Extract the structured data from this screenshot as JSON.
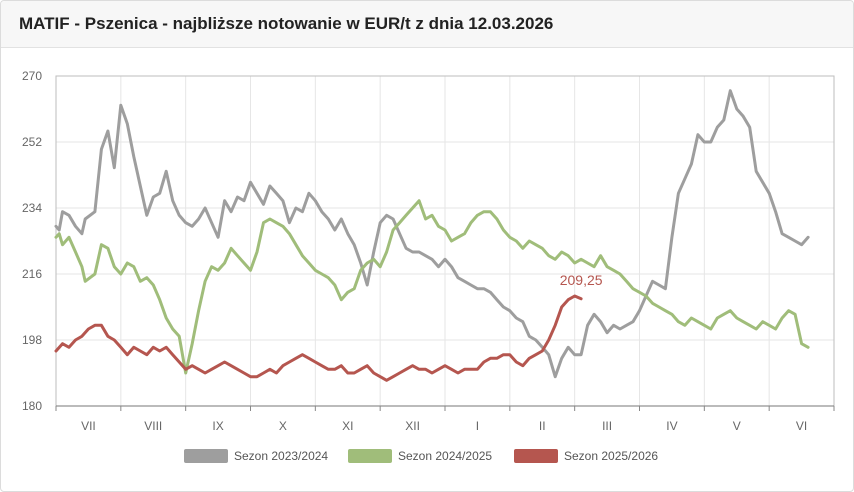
{
  "header": {
    "title": "MATIF - Pszenica - najbliższe notowanie w EUR/t z dnia 12.03.2026"
  },
  "chart_data": {
    "type": "line",
    "ylim": [
      180,
      270
    ],
    "yticks": [
      180,
      198,
      216,
      234,
      252,
      270
    ],
    "months": [
      "VII",
      "VIII",
      "IX",
      "X",
      "XI",
      "XII",
      "I",
      "II",
      "III",
      "IV",
      "V",
      "VI"
    ],
    "grid": true,
    "legend_position": "bottom",
    "last_value_label": "209,25",
    "series": [
      {
        "name": "Sezon 2023/2024",
        "color": "#9e9e9e",
        "points": [
          [
            0,
            229
          ],
          [
            0.05,
            228
          ],
          [
            0.1,
            233
          ],
          [
            0.2,
            232
          ],
          [
            0.3,
            229
          ],
          [
            0.4,
            227
          ],
          [
            0.45,
            231
          ],
          [
            0.6,
            233
          ],
          [
            0.7,
            250
          ],
          [
            0.8,
            255
          ],
          [
            0.9,
            245
          ],
          [
            1.0,
            262
          ],
          [
            1.1,
            257
          ],
          [
            1.2,
            248
          ],
          [
            1.3,
            240
          ],
          [
            1.4,
            232
          ],
          [
            1.5,
            237
          ],
          [
            1.6,
            238
          ],
          [
            1.7,
            244
          ],
          [
            1.8,
            236
          ],
          [
            1.9,
            232
          ],
          [
            2.0,
            230
          ],
          [
            2.1,
            229
          ],
          [
            2.2,
            231
          ],
          [
            2.3,
            234
          ],
          [
            2.4,
            230
          ],
          [
            2.5,
            226
          ],
          [
            2.6,
            236
          ],
          [
            2.7,
            233
          ],
          [
            2.8,
            237
          ],
          [
            2.9,
            236
          ],
          [
            3.0,
            241
          ],
          [
            3.1,
            238
          ],
          [
            3.2,
            235
          ],
          [
            3.3,
            240
          ],
          [
            3.4,
            238
          ],
          [
            3.5,
            236
          ],
          [
            3.6,
            230
          ],
          [
            3.7,
            234
          ],
          [
            3.8,
            233
          ],
          [
            3.9,
            238
          ],
          [
            4.0,
            236
          ],
          [
            4.1,
            233
          ],
          [
            4.2,
            231
          ],
          [
            4.3,
            228
          ],
          [
            4.4,
            231
          ],
          [
            4.5,
            227
          ],
          [
            4.6,
            224
          ],
          [
            4.7,
            219
          ],
          [
            4.8,
            213
          ],
          [
            4.9,
            222
          ],
          [
            5.0,
            230
          ],
          [
            5.1,
            232
          ],
          [
            5.2,
            231
          ],
          [
            5.3,
            227
          ],
          [
            5.4,
            223
          ],
          [
            5.5,
            222
          ],
          [
            5.6,
            222
          ],
          [
            5.7,
            221
          ],
          [
            5.8,
            220
          ],
          [
            5.9,
            218
          ],
          [
            6.0,
            220
          ],
          [
            6.1,
            218
          ],
          [
            6.2,
            215
          ],
          [
            6.3,
            214
          ],
          [
            6.4,
            213
          ],
          [
            6.5,
            212
          ],
          [
            6.6,
            212
          ],
          [
            6.7,
            211
          ],
          [
            6.8,
            209
          ],
          [
            6.9,
            207
          ],
          [
            7.0,
            206
          ],
          [
            7.1,
            204
          ],
          [
            7.2,
            203
          ],
          [
            7.3,
            199
          ],
          [
            7.4,
            198
          ],
          [
            7.5,
            196
          ],
          [
            7.6,
            194
          ],
          [
            7.7,
            188
          ],
          [
            7.8,
            193
          ],
          [
            7.9,
            196
          ],
          [
            8.0,
            194
          ],
          [
            8.1,
            194
          ],
          [
            8.2,
            202
          ],
          [
            8.3,
            205
          ],
          [
            8.4,
            203
          ],
          [
            8.5,
            200
          ],
          [
            8.6,
            202
          ],
          [
            8.7,
            201
          ],
          [
            8.8,
            202
          ],
          [
            8.9,
            203
          ],
          [
            9.0,
            206
          ],
          [
            9.1,
            210
          ],
          [
            9.2,
            214
          ],
          [
            9.3,
            213
          ],
          [
            9.4,
            212
          ],
          [
            9.5,
            226
          ],
          [
            9.6,
            238
          ],
          [
            9.7,
            242
          ],
          [
            9.8,
            246
          ],
          [
            9.9,
            254
          ],
          [
            10.0,
            252
          ],
          [
            10.1,
            252
          ],
          [
            10.2,
            256
          ],
          [
            10.3,
            258
          ],
          [
            10.4,
            266
          ],
          [
            10.5,
            261
          ],
          [
            10.6,
            259
          ],
          [
            10.7,
            256
          ],
          [
            10.8,
            244
          ],
          [
            10.9,
            241
          ],
          [
            11.0,
            238
          ],
          [
            11.1,
            233
          ],
          [
            11.2,
            227
          ],
          [
            11.3,
            226
          ],
          [
            11.4,
            225
          ],
          [
            11.5,
            224
          ],
          [
            11.6,
            226
          ]
        ]
      },
      {
        "name": "Sezon 2024/2025",
        "color": "#a0bd7a",
        "points": [
          [
            0,
            226
          ],
          [
            0.05,
            227
          ],
          [
            0.1,
            224
          ],
          [
            0.2,
            226
          ],
          [
            0.3,
            222
          ],
          [
            0.4,
            218
          ],
          [
            0.45,
            214
          ],
          [
            0.6,
            216
          ],
          [
            0.7,
            224
          ],
          [
            0.8,
            223
          ],
          [
            0.9,
            218
          ],
          [
            1.0,
            216
          ],
          [
            1.1,
            219
          ],
          [
            1.2,
            218
          ],
          [
            1.3,
            214
          ],
          [
            1.4,
            215
          ],
          [
            1.5,
            213
          ],
          [
            1.6,
            209
          ],
          [
            1.7,
            204
          ],
          [
            1.8,
            201
          ],
          [
            1.9,
            199
          ],
          [
            2.0,
            189
          ],
          [
            2.1,
            197
          ],
          [
            2.2,
            206
          ],
          [
            2.3,
            214
          ],
          [
            2.4,
            218
          ],
          [
            2.5,
            217
          ],
          [
            2.6,
            219
          ],
          [
            2.7,
            223
          ],
          [
            2.8,
            221
          ],
          [
            2.9,
            219
          ],
          [
            3.0,
            217
          ],
          [
            3.1,
            222
          ],
          [
            3.2,
            230
          ],
          [
            3.3,
            231
          ],
          [
            3.4,
            230
          ],
          [
            3.5,
            229
          ],
          [
            3.6,
            227
          ],
          [
            3.7,
            224
          ],
          [
            3.8,
            221
          ],
          [
            3.9,
            219
          ],
          [
            4.0,
            217
          ],
          [
            4.1,
            216
          ],
          [
            4.2,
            215
          ],
          [
            4.3,
            213
          ],
          [
            4.4,
            209
          ],
          [
            4.5,
            211
          ],
          [
            4.6,
            212
          ],
          [
            4.7,
            217
          ],
          [
            4.8,
            219
          ],
          [
            4.9,
            220
          ],
          [
            5.0,
            218
          ],
          [
            5.1,
            222
          ],
          [
            5.2,
            228
          ],
          [
            5.3,
            230
          ],
          [
            5.4,
            232
          ],
          [
            5.5,
            234
          ],
          [
            5.6,
            236
          ],
          [
            5.7,
            231
          ],
          [
            5.8,
            232
          ],
          [
            5.9,
            229
          ],
          [
            6.0,
            228
          ],
          [
            6.1,
            225
          ],
          [
            6.2,
            226
          ],
          [
            6.3,
            227
          ],
          [
            6.4,
            230
          ],
          [
            6.5,
            232
          ],
          [
            6.6,
            233
          ],
          [
            6.7,
            233
          ],
          [
            6.8,
            231
          ],
          [
            6.9,
            228
          ],
          [
            7.0,
            226
          ],
          [
            7.1,
            225
          ],
          [
            7.2,
            223
          ],
          [
            7.3,
            225
          ],
          [
            7.4,
            224
          ],
          [
            7.5,
            223
          ],
          [
            7.6,
            221
          ],
          [
            7.7,
            220
          ],
          [
            7.8,
            222
          ],
          [
            7.9,
            221
          ],
          [
            8.0,
            219
          ],
          [
            8.1,
            220
          ],
          [
            8.2,
            219
          ],
          [
            8.3,
            218
          ],
          [
            8.4,
            221
          ],
          [
            8.5,
            218
          ],
          [
            8.6,
            217
          ],
          [
            8.7,
            216
          ],
          [
            8.8,
            214
          ],
          [
            8.9,
            212
          ],
          [
            9.0,
            211
          ],
          [
            9.1,
            210
          ],
          [
            9.2,
            208
          ],
          [
            9.3,
            207
          ],
          [
            9.4,
            206
          ],
          [
            9.5,
            205
          ],
          [
            9.6,
            203
          ],
          [
            9.7,
            202
          ],
          [
            9.8,
            204
          ],
          [
            9.9,
            203
          ],
          [
            10.0,
            202
          ],
          [
            10.1,
            201
          ],
          [
            10.2,
            204
          ],
          [
            10.3,
            205
          ],
          [
            10.4,
            206
          ],
          [
            10.5,
            204
          ],
          [
            10.6,
            203
          ],
          [
            10.7,
            202
          ],
          [
            10.8,
            201
          ],
          [
            10.9,
            203
          ],
          [
            11.0,
            202
          ],
          [
            11.1,
            201
          ],
          [
            11.2,
            204
          ],
          [
            11.3,
            206
          ],
          [
            11.4,
            205
          ],
          [
            11.5,
            197
          ],
          [
            11.6,
            196
          ]
        ]
      },
      {
        "name": "Sezon 2025/2026",
        "color": "#b5564f",
        "points": [
          [
            0,
            195
          ],
          [
            0.1,
            197
          ],
          [
            0.2,
            196
          ],
          [
            0.3,
            198
          ],
          [
            0.4,
            199
          ],
          [
            0.5,
            201
          ],
          [
            0.6,
            202
          ],
          [
            0.7,
            202
          ],
          [
            0.8,
            199
          ],
          [
            0.9,
            198
          ],
          [
            1.0,
            196
          ],
          [
            1.1,
            194
          ],
          [
            1.2,
            196
          ],
          [
            1.3,
            195
          ],
          [
            1.4,
            194
          ],
          [
            1.5,
            196
          ],
          [
            1.6,
            195
          ],
          [
            1.7,
            196
          ],
          [
            1.8,
            194
          ],
          [
            1.9,
            192
          ],
          [
            2.0,
            190
          ],
          [
            2.1,
            191
          ],
          [
            2.2,
            190
          ],
          [
            2.3,
            189
          ],
          [
            2.4,
            190
          ],
          [
            2.5,
            191
          ],
          [
            2.6,
            192
          ],
          [
            2.7,
            191
          ],
          [
            2.8,
            190
          ],
          [
            2.9,
            189
          ],
          [
            3.0,
            188
          ],
          [
            3.1,
            188
          ],
          [
            3.2,
            189
          ],
          [
            3.3,
            190
          ],
          [
            3.4,
            189
          ],
          [
            3.5,
            191
          ],
          [
            3.6,
            192
          ],
          [
            3.7,
            193
          ],
          [
            3.8,
            194
          ],
          [
            3.9,
            193
          ],
          [
            4.0,
            192
          ],
          [
            4.1,
            191
          ],
          [
            4.2,
            190
          ],
          [
            4.3,
            190
          ],
          [
            4.4,
            191
          ],
          [
            4.5,
            189
          ],
          [
            4.6,
            189
          ],
          [
            4.7,
            190
          ],
          [
            4.8,
            191
          ],
          [
            4.9,
            189
          ],
          [
            5.0,
            188
          ],
          [
            5.1,
            187
          ],
          [
            5.2,
            188
          ],
          [
            5.3,
            189
          ],
          [
            5.4,
            190
          ],
          [
            5.5,
            191
          ],
          [
            5.6,
            190
          ],
          [
            5.7,
            190
          ],
          [
            5.8,
            189
          ],
          [
            5.9,
            190
          ],
          [
            6.0,
            191
          ],
          [
            6.1,
            190
          ],
          [
            6.2,
            189
          ],
          [
            6.3,
            190
          ],
          [
            6.4,
            190
          ],
          [
            6.5,
            190
          ],
          [
            6.6,
            192
          ],
          [
            6.7,
            193
          ],
          [
            6.8,
            193
          ],
          [
            6.9,
            194
          ],
          [
            7.0,
            194
          ],
          [
            7.1,
            192
          ],
          [
            7.2,
            191
          ],
          [
            7.3,
            193
          ],
          [
            7.4,
            194
          ],
          [
            7.5,
            195
          ],
          [
            7.6,
            198
          ],
          [
            7.7,
            202
          ],
          [
            7.8,
            207
          ],
          [
            7.9,
            209
          ],
          [
            8.0,
            210
          ],
          [
            8.1,
            209.25
          ]
        ]
      }
    ]
  }
}
